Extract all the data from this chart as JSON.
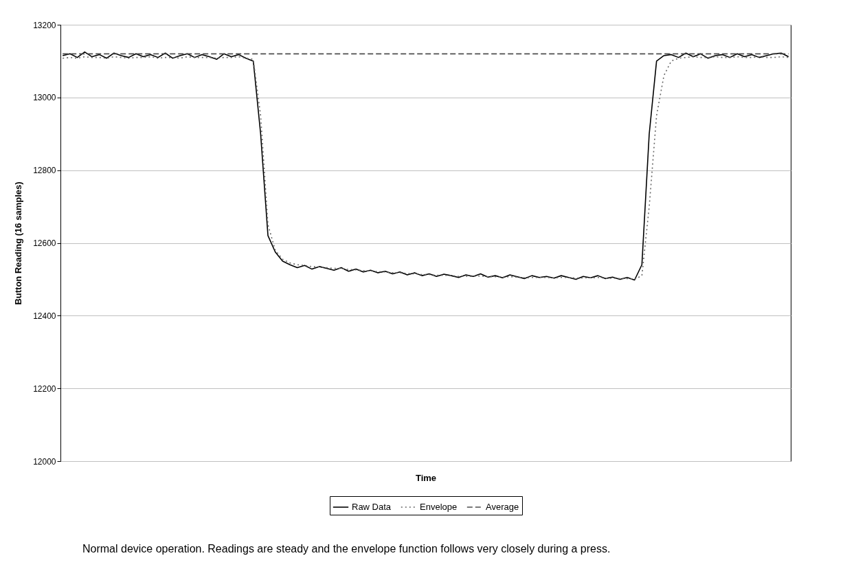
{
  "chart_data": {
    "type": "line",
    "xlabel": "Time",
    "ylabel": "Button Reading (16 samples)",
    "categories": [
      null,
      null,
      null,
      null,
      null,
      null,
      null,
      null,
      null,
      null,
      null,
      null,
      null,
      null,
      null,
      null,
      null,
      null,
      null,
      null,
      null,
      null,
      null,
      null,
      null,
      null,
      null,
      null,
      null,
      null,
      null,
      null,
      null,
      null,
      null,
      null,
      null,
      null,
      null,
      null,
      null,
      null,
      null,
      null,
      null,
      null,
      null,
      null,
      null,
      null,
      null,
      null,
      null,
      null,
      null,
      null,
      null,
      null,
      null,
      null,
      null,
      null,
      null,
      null,
      null,
      null,
      null,
      null,
      null,
      null,
      null,
      null,
      null,
      null,
      null,
      null,
      null,
      null,
      null,
      null,
      null,
      null,
      null,
      null,
      null,
      null,
      null,
      null,
      null,
      null,
      null,
      null,
      null,
      null,
      null,
      null,
      null,
      null,
      null,
      null
    ],
    "series": [
      {
        "name": "Raw Data",
        "color": "#000000",
        "line_style": "solid",
        "values": [
          13115,
          13120,
          13110,
          13125,
          13112,
          13118,
          13108,
          13122,
          13115,
          13110,
          13120,
          13112,
          13118,
          13110,
          13122,
          13108,
          13115,
          13120,
          13110,
          13118,
          13112,
          13105,
          13120,
          13112,
          13118,
          13108,
          13100,
          12900,
          12620,
          12575,
          12550,
          12540,
          12532,
          12538,
          12528,
          12535,
          12530,
          12525,
          12532,
          12522,
          12528,
          12520,
          12525,
          12518,
          12522,
          12515,
          12520,
          12512,
          12518,
          12510,
          12515,
          12508,
          12514,
          12510,
          12505,
          12512,
          12508,
          12515,
          12506,
          12510,
          12504,
          12512,
          12507,
          12502,
          12510,
          12505,
          12508,
          12503,
          12510,
          12505,
          12500,
          12508,
          12504,
          12510,
          12502,
          12506,
          12500,
          12505,
          12498,
          12540,
          12900,
          13100,
          13115,
          13118,
          13110,
          13122,
          13112,
          13120,
          13108,
          13115,
          13118,
          13110,
          13120,
          13112,
          13118,
          13110,
          13115,
          13120,
          13122,
          13112
        ]
      },
      {
        "name": "Envelope",
        "color": "#666666",
        "line_style": "dotted",
        "values": [
          13108,
          13110,
          13108,
          13112,
          13110,
          13110,
          13108,
          13112,
          13110,
          13108,
          13110,
          13110,
          13112,
          13108,
          13110,
          13110,
          13108,
          13112,
          13110,
          13110,
          13110,
          13108,
          13110,
          13110,
          13112,
          13108,
          13105,
          12950,
          12650,
          12580,
          12555,
          12545,
          12540,
          12538,
          12535,
          12534,
          12532,
          12530,
          12530,
          12527,
          12526,
          12524,
          12523,
          12521,
          12520,
          12518,
          12518,
          12516,
          12515,
          12513,
          12513,
          12511,
          12511,
          12510,
          12508,
          12508,
          12508,
          12509,
          12507,
          12507,
          12506,
          12507,
          12506,
          12504,
          12505,
          12505,
          12505,
          12504,
          12505,
          12505,
          12503,
          12504,
          12504,
          12505,
          12503,
          12503,
          12502,
          12502,
          12500,
          12510,
          12700,
          12950,
          13060,
          13100,
          13108,
          13110,
          13112,
          13110,
          13110,
          13112,
          13110,
          13110,
          13112,
          13110,
          13110,
          13112,
          13110,
          13110,
          13112,
          13110
        ]
      },
      {
        "name": "Average",
        "color": "#4d4d4d",
        "line_style": "dashed",
        "values": [
          13120,
          13120,
          13120,
          13120,
          13120,
          13120,
          13120,
          13120,
          13120,
          13120,
          13120,
          13120,
          13120,
          13120,
          13120,
          13120,
          13120,
          13120,
          13120,
          13120,
          13120,
          13120,
          13120,
          13120,
          13120,
          13120,
          13120,
          13120,
          13120,
          13120,
          13120,
          13120,
          13120,
          13120,
          13120,
          13120,
          13120,
          13120,
          13120,
          13120,
          13120,
          13120,
          13120,
          13120,
          13120,
          13120,
          13120,
          13120,
          13120,
          13120,
          13120,
          13120,
          13120,
          13120,
          13120,
          13120,
          13120,
          13120,
          13120,
          13120,
          13120,
          13120,
          13120,
          13120,
          13120,
          13120,
          13120,
          13120,
          13120,
          13120,
          13120,
          13120,
          13120,
          13120,
          13120,
          13120,
          13120,
          13120,
          13120,
          13120,
          13120,
          13120,
          13120,
          13120,
          13120,
          13120,
          13120,
          13120,
          13120,
          13120,
          13120,
          13120,
          13120,
          13120,
          13120,
          13120,
          13120,
          13120,
          13120,
          13120
        ]
      }
    ],
    "ylim": [
      12000,
      13200
    ],
    "yticks": [
      12000,
      12200,
      12400,
      12600,
      12800,
      13000,
      13200
    ],
    "grid": "y",
    "legend": "bottom",
    "tick_labels": "y",
    "annotations": [
      "Normal device operation. Readings are steady and the envelope function follows very closely during a press."
    ]
  }
}
